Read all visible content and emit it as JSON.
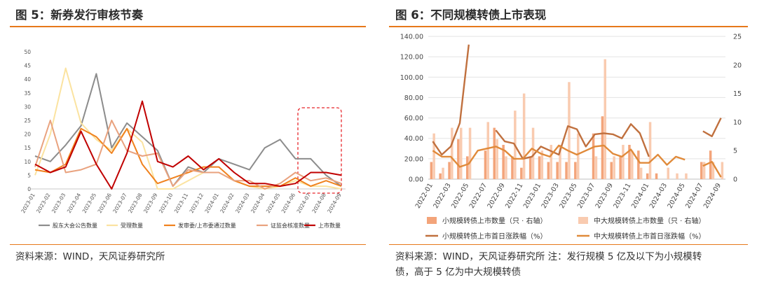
{
  "fig5": {
    "title": "图 5：新券发行审核节奏",
    "source": "资料来源：WIND，天风证券研究所"
  },
  "fig6": {
    "title": "图 6：不同规模转债上市表现",
    "source_line1": "资料来源：WIND，天风证券研究所 注：发行规模 5 亿及以下为小规模转",
    "source_line2": "债，高于 5 亿为中大规模转债"
  },
  "chart_data": [
    {
      "id": "fig5",
      "type": "line",
      "title": "",
      "x": [
        "2023-01",
        "2023-02",
        "2023-03",
        "2023-04",
        "2023-05",
        "2023-06",
        "2023-07",
        "2023-08",
        "2023-09",
        "2023-10",
        "2023-11",
        "2023-12",
        "2024-01",
        "2024-02",
        "2024-03",
        "2024-04",
        "2024-05",
        "2024-06",
        "2024-07",
        "2024-08",
        "2024-09"
      ],
      "ylim": [
        0,
        50
      ],
      "yticks": [
        0,
        5,
        10,
        15,
        20,
        25,
        30,
        35,
        40,
        45,
        50
      ],
      "grid": false,
      "legend_position": "bottom",
      "annotation": "red dashed box around 2024-06 to 2024-09",
      "series": [
        {
          "name": "股东大会公告数量",
          "color": "#8c8c8c",
          "values": [
            12,
            10,
            16,
            23,
            42,
            15,
            24,
            19,
            14,
            1,
            8,
            6,
            11,
            9,
            7,
            15,
            18,
            11,
            11,
            5,
            1
          ]
        },
        {
          "name": "受理数量",
          "color": "#fbe3a0",
          "values": [
            5,
            20,
            44,
            24,
            18,
            14,
            22,
            17,
            0,
            0,
            3,
            6,
            6,
            3,
            1,
            0,
            1,
            3,
            1,
            1,
            0
          ]
        },
        {
          "name": "发审委/上市委通过数量",
          "color": "#f0821e",
          "values": [
            7,
            6,
            9,
            22,
            19,
            13,
            22,
            9,
            2,
            4,
            6,
            8,
            8,
            3,
            1,
            1,
            1,
            4,
            1,
            3,
            1
          ]
        },
        {
          "name": "证监会核准数量",
          "color": "#e9a27e",
          "values": [
            8,
            25,
            6,
            7,
            9,
            25,
            14,
            12,
            13,
            1,
            7,
            6,
            6,
            3,
            3,
            0,
            2,
            6,
            3,
            4,
            2
          ]
        },
        {
          "name": "上市数量",
          "color": "#c00000",
          "values": [
            9,
            6,
            8,
            21,
            9,
            0,
            13,
            32,
            10,
            8,
            12,
            7,
            11,
            6,
            2,
            2,
            1,
            2,
            6,
            6,
            5
          ]
        }
      ]
    },
    {
      "id": "fig6",
      "type": "bar",
      "title": "",
      "x_ticks": [
        "2022-01",
        "2022-03",
        "2022-05",
        "2022-07",
        "2022-09",
        "2022-11",
        "2023-01",
        "2023-03",
        "2023-05",
        "2023-07",
        "2023-09",
        "2023-11",
        "2024-01",
        "2024-03",
        "2024-05",
        "2024-07",
        "2024-09"
      ],
      "x": [
        "2022-01",
        "2022-02",
        "2022-03",
        "2022-04",
        "2022-05",
        "2022-06",
        "2022-07",
        "2022-08",
        "2022-09",
        "2022-10",
        "2022-11",
        "2022-12",
        "2023-01",
        "2023-02",
        "2023-03",
        "2023-04",
        "2023-05",
        "2023-06",
        "2023-07",
        "2023-08",
        "2023-09",
        "2023-10",
        "2023-11",
        "2023-12",
        "2024-01",
        "2024-02",
        "2024-03",
        "2024-04",
        "2024-05",
        "2024-06",
        "2024-07",
        "2024-08",
        "2024-09"
      ],
      "left_ylim": [
        0,
        140
      ],
      "left_yticks": [
        "0.00",
        "20.00",
        "40.00",
        "60.00",
        "80.00",
        "100.00",
        "120.00",
        "140.00"
      ],
      "right_ylim": [
        0,
        25
      ],
      "right_yticks": [
        "0",
        "5",
        "10",
        "15",
        "20",
        "25"
      ],
      "grid": true,
      "legend_position": "bottom",
      "series": [
        {
          "name": "小规模转债上市数量（只 · 右轴）",
          "kind": "bar",
          "axis": "right",
          "color": "#f3a47a",
          "values": [
            3,
            1,
            3,
            7,
            4,
            0,
            5,
            9,
            6,
            4,
            2,
            4,
            4,
            3,
            3,
            3,
            3,
            0,
            8,
            11,
            3,
            4,
            6,
            5,
            1,
            1,
            0,
            0,
            0,
            0,
            3,
            5,
            0
          ]
        },
        {
          "name": "中大规模转债上市数量（只 · 右轴）",
          "kind": "bar",
          "axis": "right",
          "color": "#f9cbb0",
          "values": [
            8,
            2,
            9,
            9,
            9,
            0,
            10,
            7,
            4,
            12,
            15,
            9,
            5,
            6,
            6,
            17,
            8,
            0,
            4,
            21,
            4,
            6,
            5,
            2,
            10,
            0,
            2,
            1,
            1,
            0,
            3,
            3,
            3
          ]
        },
        {
          "name": "小规模转债上市首日涨跌幅（%）",
          "kind": "line",
          "axis": "left",
          "color": "#c0703e",
          "values": [
            37,
            24,
            32,
            55,
            132,
            null,
            null,
            48,
            37,
            35,
            20,
            22,
            32,
            28,
            24,
            52,
            49,
            32,
            44,
            45,
            44,
            40,
            54,
            45,
            22,
            null,
            null,
            null,
            null,
            null,
            47,
            42,
            60
          ]
        },
        {
          "name": "中大规模转债上市首日涨跌幅（%）",
          "kind": "line",
          "axis": "left",
          "color": "#e08a3a",
          "values": [
            28,
            22,
            22,
            12,
            15,
            28,
            30,
            32,
            28,
            20,
            20,
            30,
            25,
            22,
            33,
            28,
            24,
            28,
            32,
            33,
            25,
            22,
            29,
            16,
            16,
            24,
            14,
            22,
            19,
            null,
            13,
            17,
            2
          ]
        }
      ]
    }
  ]
}
